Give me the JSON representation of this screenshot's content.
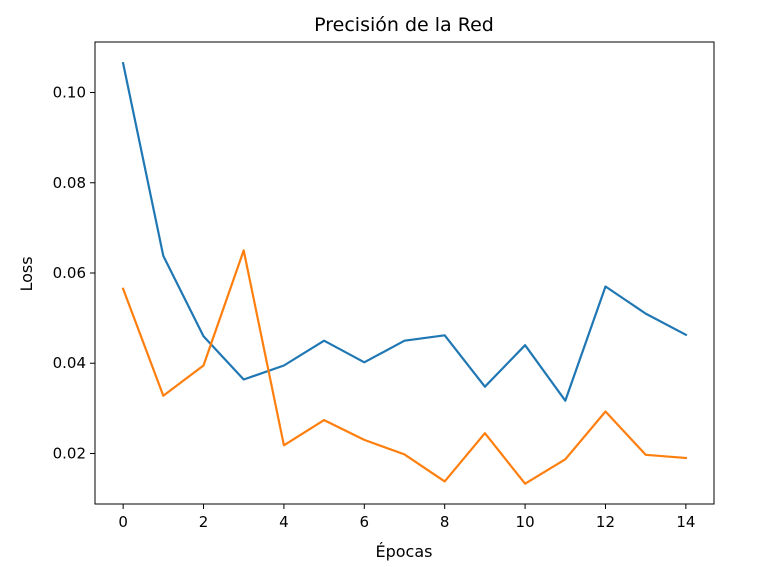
{
  "chart_data": {
    "type": "line",
    "title": "Precisión de la Red",
    "xlabel": "Épocas",
    "ylabel": "Loss",
    "xlim": [
      -0.7,
      14.7
    ],
    "ylim": [
      0.0088,
      0.1112
    ],
    "grid": false,
    "x": [
      0,
      1,
      2,
      3,
      4,
      5,
      6,
      7,
      8,
      9,
      10,
      11,
      12,
      13,
      14
    ],
    "x_ticks": [
      0,
      2,
      4,
      6,
      8,
      10,
      12,
      14
    ],
    "y_ticks": [
      0.02,
      0.04,
      0.06,
      0.08,
      0.1
    ],
    "x_tick_labels": [
      "0",
      "2",
      "4",
      "6",
      "8",
      "10",
      "12",
      "14"
    ],
    "y_tick_labels": [
      "0.02",
      "0.04",
      "0.06",
      "0.08",
      "0.10"
    ],
    "series": [
      {
        "color": "#1f77b4",
        "values": [
          0.1065,
          0.0638,
          0.046,
          0.0364,
          0.0395,
          0.045,
          0.0402,
          0.045,
          0.0462,
          0.0348,
          0.044,
          0.0317,
          0.057,
          0.051,
          0.0463
        ]
      },
      {
        "color": "#ff7f0e",
        "values": [
          0.0565,
          0.0328,
          0.0395,
          0.065,
          0.0218,
          0.0274,
          0.023,
          0.0198,
          0.0138,
          0.0245,
          0.0133,
          0.0187,
          0.0293,
          0.0197,
          0.019
        ]
      }
    ]
  }
}
